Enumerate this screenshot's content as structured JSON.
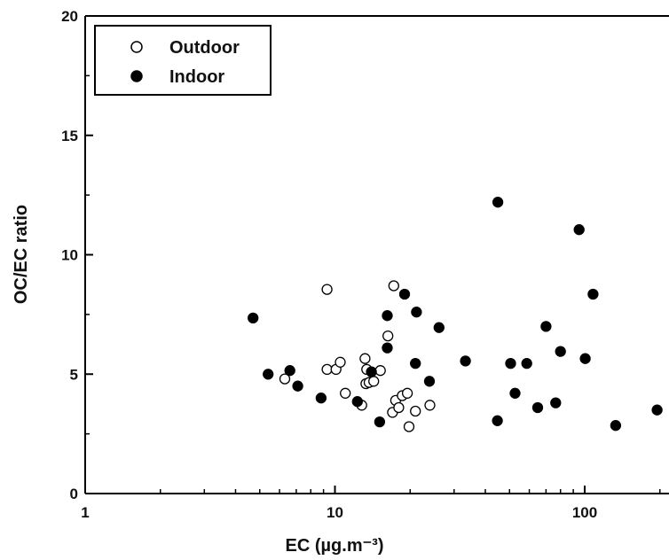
{
  "chart_data": {
    "type": "scatter",
    "xlabel": "EC (µg.m⁻³)",
    "ylabel": "OC/EC ratio",
    "xscale": "log",
    "xlim": [
      1,
      200
    ],
    "ylim": [
      0,
      20
    ],
    "x_ticks": [
      "1",
      "10",
      "100"
    ],
    "y_ticks": [
      "0",
      "5",
      "10",
      "15",
      "20"
    ],
    "grid": false,
    "legend_position": "top-left",
    "series": [
      {
        "name": "Outdoor",
        "marker": "open-circle",
        "color": "#000000",
        "points": [
          [
            6.3,
            4.8
          ],
          [
            9.3,
            8.55
          ],
          [
            9.3,
            5.2
          ],
          [
            10.1,
            5.2
          ],
          [
            10.5,
            5.5
          ],
          [
            11.0,
            4.2
          ],
          [
            12.8,
            3.7
          ],
          [
            13.2,
            5.65
          ],
          [
            13.4,
            5.2
          ],
          [
            13.3,
            4.6
          ],
          [
            13.7,
            4.65
          ],
          [
            14.3,
            4.7
          ],
          [
            15.2,
            5.15
          ],
          [
            16.3,
            6.6
          ],
          [
            17.2,
            8.7
          ],
          [
            17.5,
            3.9
          ],
          [
            17.0,
            3.4
          ],
          [
            18.0,
            3.6
          ],
          [
            18.6,
            4.1
          ],
          [
            19.5,
            4.2
          ],
          [
            21.0,
            3.45
          ],
          [
            19.8,
            2.8
          ],
          [
            24.0,
            3.7
          ]
        ]
      },
      {
        "name": "Indoor",
        "marker": "filled-circle",
        "color": "#000000",
        "points": [
          [
            4.7,
            7.35
          ],
          [
            5.4,
            5.0
          ],
          [
            6.6,
            5.15
          ],
          [
            7.1,
            4.5
          ],
          [
            8.8,
            4.0
          ],
          [
            12.3,
            3.85
          ],
          [
            14.0,
            5.1
          ],
          [
            15.1,
            3.0
          ],
          [
            16.2,
            7.45
          ],
          [
            16.2,
            6.1
          ],
          [
            19.0,
            8.35
          ],
          [
            21.2,
            7.6
          ],
          [
            21.0,
            5.45
          ],
          [
            23.9,
            4.7
          ],
          [
            26.1,
            6.95
          ],
          [
            33.3,
            5.55
          ],
          [
            44.9,
            12.2
          ],
          [
            44.7,
            3.05
          ],
          [
            50.5,
            5.45
          ],
          [
            52.6,
            4.2
          ],
          [
            58.6,
            5.45
          ],
          [
            64.8,
            3.6
          ],
          [
            70.0,
            7.0
          ],
          [
            76.5,
            3.8
          ],
          [
            80.0,
            5.95
          ],
          [
            95.0,
            11.05
          ],
          [
            100.5,
            5.65
          ],
          [
            108.0,
            8.35
          ],
          [
            133.0,
            2.85
          ],
          [
            195.0,
            3.5
          ]
        ]
      }
    ]
  }
}
